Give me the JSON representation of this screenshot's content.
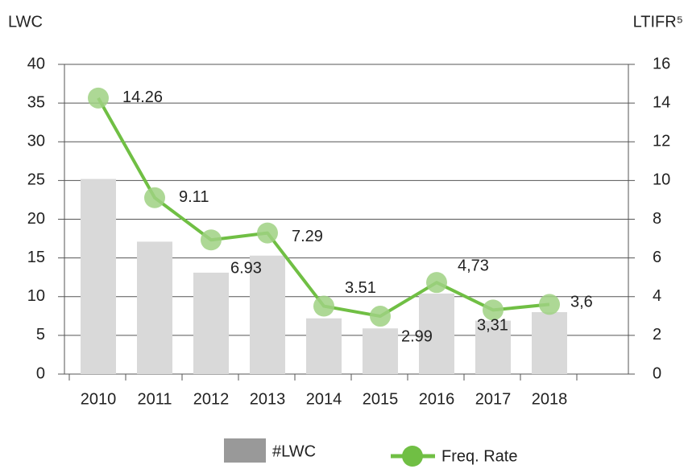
{
  "chart_data": {
    "type": "bar_line",
    "y_label": "LWC",
    "y2_label": "LTIFR⁵",
    "categories": [
      "2010",
      "2011",
      "2012",
      "2013",
      "2014",
      "2015",
      "2016",
      "2017",
      "2018",
      null
    ],
    "series": [
      {
        "name": "#LWC",
        "type": "bar",
        "color": "#d9d9d9",
        "values": [
          25.2,
          17.1,
          13.1,
          15.3,
          7.2,
          5.9,
          10.4,
          6.9,
          8,
          null
        ]
      },
      {
        "name": "Freq. Rate",
        "type": "line",
        "axis": "y2",
        "color": "#70bf44",
        "marker_color": "#9fd182",
        "values": [
          14.26,
          9.11,
          6.93,
          7.29,
          3.51,
          2.99,
          4.73,
          3.31,
          3.6,
          null
        ],
        "value_labels": [
          "14.26",
          "9.11",
          "6.93",
          "7.29",
          "3.51",
          "2.99",
          "4,73",
          "3,31",
          "3,6",
          null
        ]
      }
    ],
    "legend_color": "#999999",
    "ylim": [
      0,
      40
    ],
    "yticks": [
      0,
      5,
      10,
      15,
      20,
      25,
      30,
      35,
      40
    ],
    "y2lim": [
      0,
      16
    ],
    "y2ticks": [
      0,
      2,
      4,
      6,
      8,
      10,
      12,
      14,
      16
    ],
    "grid": true
  }
}
